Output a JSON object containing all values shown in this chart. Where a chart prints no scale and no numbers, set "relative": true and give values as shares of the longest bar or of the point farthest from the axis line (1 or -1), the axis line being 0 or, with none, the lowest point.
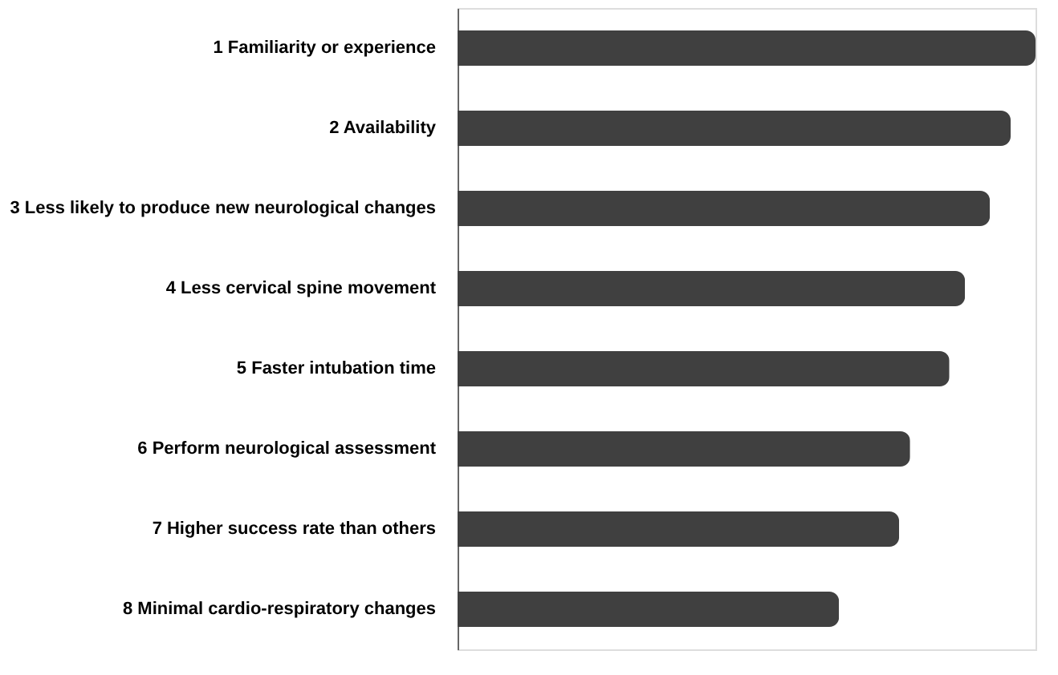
{
  "chart_data": {
    "type": "bar",
    "orientation": "horizontal",
    "relative": true,
    "categories": [
      "1 Familiarity or experience",
      "2 Availability",
      "3 Less likely to produce new neurological changes",
      "4 Less cervical spine movement",
      "5 Faster intubation time",
      "6 Perform neurological assessment",
      "7 Higher success rate than others",
      "8 Minimal cardio-respiratory changes"
    ],
    "values": [
      1,
      0.957,
      0.921,
      0.878,
      0.851,
      0.783,
      0.764,
      0.66
    ],
    "color": "#404040"
  }
}
